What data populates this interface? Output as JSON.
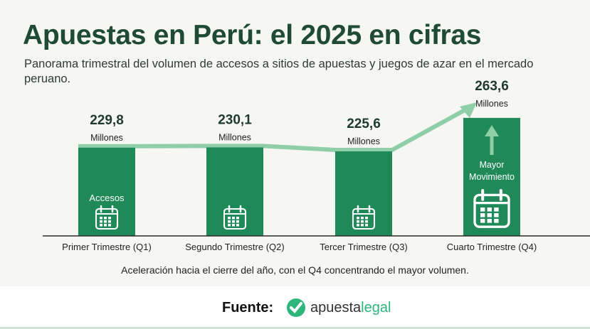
{
  "title": "Apuestas en Perú: el 2025 en cifras",
  "subtitle": "Panorama trimestral del volumen de accesos a sitios de apuestas y juegos de azar en el mercado peruano.",
  "chart_data": {
    "type": "bar",
    "categories": [
      "Primer Trimestre (Q1)",
      "Segundo Trimestre (Q2)",
      "Tercer Trimestre (Q3)",
      "Cuarto Trimestre (Q4)"
    ],
    "values": [
      229.8,
      230.1,
      225.6,
      263.6
    ],
    "value_labels": [
      "229,8",
      "230,1",
      "225,6",
      "263,6"
    ],
    "unit": "Millones",
    "bar_annotations": [
      "Accesos",
      "",
      "",
      "Mayor Movimiento"
    ],
    "trend_line": true,
    "grid": false,
    "colors": {
      "bar": "#1f8a57",
      "line": "#8fcfa8",
      "title": "#1f4a33"
    }
  },
  "caption": "Aceleración hacia el cierre del año, con el Q4 concentrando el mayor volumen.",
  "footer": {
    "label": "Fuente:",
    "logo_part1": "apuesta",
    "logo_part2": "legal"
  }
}
